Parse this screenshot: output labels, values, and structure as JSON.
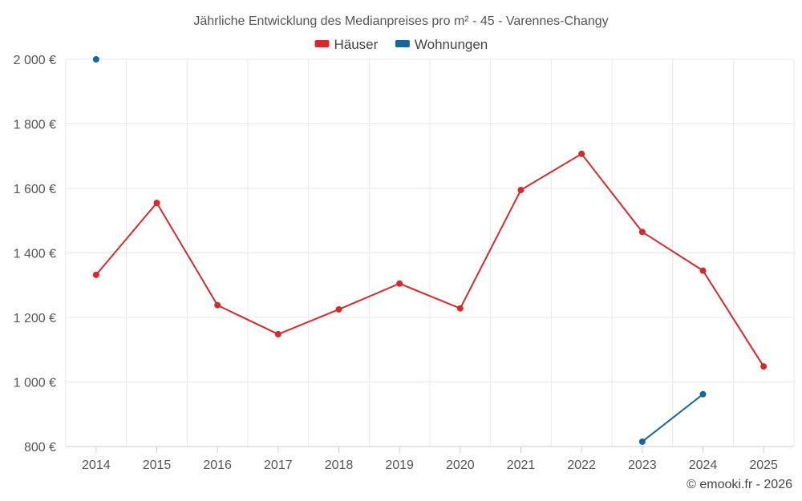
{
  "chart_data": {
    "type": "line",
    "title": "Jährliche Entwicklung des Medianpreises pro m² - 45 - Varennes-Changy",
    "categories": [
      "2014",
      "2015",
      "2016",
      "2017",
      "2018",
      "2019",
      "2020",
      "2021",
      "2022",
      "2023",
      "2024",
      "2025"
    ],
    "ylim": [
      800,
      2000
    ],
    "yticks": [
      800,
      1000,
      1200,
      1400,
      1600,
      1800,
      2000
    ],
    "ytick_labels": [
      "800 €",
      "1 000 €",
      "1 200 €",
      "1 400 €",
      "1 600 €",
      "1 800 €",
      "2 000 €"
    ],
    "grid": true,
    "legend_position": "top-center",
    "series": [
      {
        "name": "Häuser",
        "color": "#d62a2a",
        "values": [
          1332,
          1555,
          1238,
          1148,
          1225,
          1305,
          1228,
          1595,
          1707,
          1465,
          1345,
          1048
        ]
      },
      {
        "name": "Wohnungen",
        "color": "#1565a0",
        "values": [
          2000,
          null,
          null,
          null,
          null,
          null,
          null,
          null,
          null,
          815,
          962,
          null
        ]
      }
    ],
    "credit": "© emooki.fr - 2026"
  }
}
